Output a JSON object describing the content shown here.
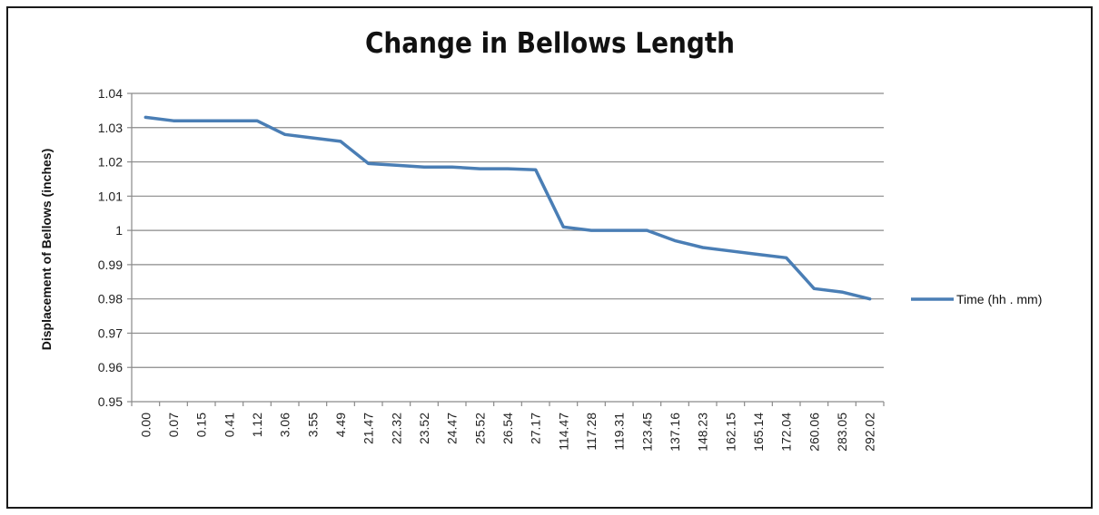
{
  "chart_data": {
    "type": "line",
    "title": "Change in Bellows Length",
    "xlabel": "",
    "ylabel": "Displacement of Bellows (inches)",
    "categories": [
      "0.00",
      "0.07",
      "0.15",
      "0.41",
      "1.12",
      "3.06",
      "3.55",
      "4.49",
      "21.47",
      "22.32",
      "23.52",
      "24.47",
      "25.52",
      "26.54",
      "27.17",
      "114.47",
      "117.28",
      "119.31",
      "123.45",
      "137.16",
      "148.23",
      "162.15",
      "165.14",
      "172.04",
      "260.06",
      "283.05",
      "292.02"
    ],
    "series": [
      {
        "name": "Time (hh . mm)",
        "color": "#4a7eb5",
        "values": [
          1.033,
          1.032,
          1.032,
          1.032,
          1.032,
          1.028,
          1.027,
          1.026,
          1.0195,
          1.019,
          1.0185,
          1.0185,
          1.018,
          1.018,
          1.0177,
          1.001,
          1.0,
          1.0,
          1.0,
          0.997,
          0.995,
          0.994,
          0.993,
          0.992,
          0.983,
          0.982,
          0.98
        ]
      }
    ],
    "ylim": [
      0.95,
      1.04
    ],
    "yticks": [
      "0.95",
      "0.96",
      "0.97",
      "0.98",
      "0.99",
      "1",
      "1.01",
      "1.02",
      "1.03",
      "1.04"
    ],
    "grid": true,
    "legend_position": "right"
  }
}
